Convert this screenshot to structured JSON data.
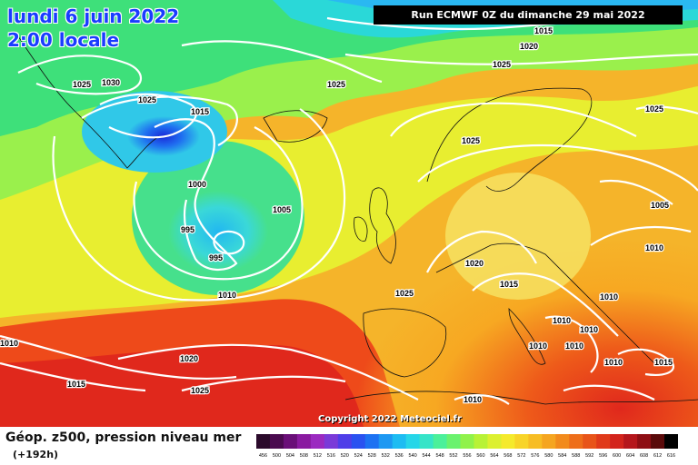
{
  "header": {
    "date_line": "lundi 6 juin 2022",
    "time_line": "2:00 locale",
    "run_info": "Run ECMWF 0Z du dimanche 29 mai 2022"
  },
  "map": {
    "copyright": "Copyright 2022 Meteociel.fr",
    "isobar_labels": [
      "1010",
      "1015",
      "1020",
      "1025",
      "1025",
      "1030",
      "1025",
      "1015",
      "1025",
      "1025",
      "1000",
      "995",
      "995",
      "1005",
      "1010",
      "1025",
      "1020",
      "1015",
      "1025",
      "1005",
      "1010",
      "1010",
      "1010",
      "1010",
      "1010",
      "1010",
      "1010",
      "1015",
      "1020",
      "1015",
      "1025",
      "1010"
    ]
  },
  "footer": {
    "label": "Géop. z500, pression niveau mer",
    "sublabel": "(+192h)",
    "scale_values": [
      "456",
      "500",
      "504",
      "508",
      "512",
      "516",
      "520",
      "524",
      "528",
      "532",
      "536",
      "540",
      "544",
      "548",
      "552",
      "556",
      "560",
      "564",
      "568",
      "572",
      "576",
      "580",
      "584",
      "588",
      "592",
      "596",
      "600",
      "604",
      "608",
      "612",
      "616"
    ],
    "scale_colors": [
      "#2b0a2b",
      "#4a0a4f",
      "#6a0f78",
      "#8a1aa0",
      "#9b2ac0",
      "#7a3ad8",
      "#4f3ee8",
      "#2a52f0",
      "#1d72f2",
      "#1d98f2",
      "#1dbcf2",
      "#26d6e8",
      "#36e4c8",
      "#4bf09a",
      "#6af26e",
      "#90f24b",
      "#b8f236",
      "#dcf030",
      "#f5ea2c",
      "#f8d428",
      "#f7bd24",
      "#f5a520",
      "#f28a1c",
      "#ee6e1a",
      "#e85419",
      "#e03a1a",
      "#d3241c",
      "#b5161c",
      "#8e0e14",
      "#5a0a0a",
      "#000000"
    ]
  }
}
